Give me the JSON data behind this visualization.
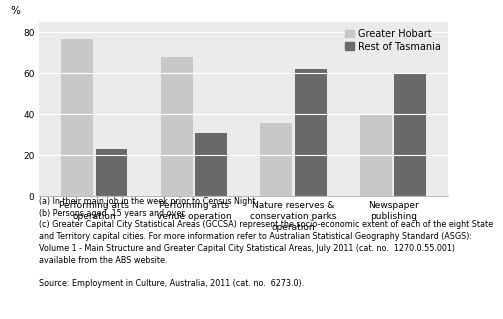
{
  "categories": [
    "Performing arts\noperation",
    "Performing arts\nvenue operation",
    "Nature reserves &\nconservation parks\noperation",
    "Newspaper\npublishing"
  ],
  "greater_hobart": [
    77,
    68,
    36,
    40
  ],
  "rest_of_tasmania": [
    23,
    31,
    62,
    60
  ],
  "bar_color_hobart": "#c8c8c8",
  "bar_color_rest": "#696969",
  "bar_width": 0.32,
  "ylim": [
    0,
    85
  ],
  "yticks": [
    0,
    20,
    40,
    60,
    80
  ],
  "ylabel": "%",
  "legend_labels": [
    "Greater Hobart",
    "Rest of Tasmania"
  ],
  "footnote_lines": [
    "(a) In their main job in the week prior to Census Night.",
    "(b) Persons aged  15 years and over.",
    "(c) Greater Capital City Statistical Areas (GCCSA) represent the socio-economic extent of each of the eight State",
    "and Territory capital cities. For more information refer to Australian Statistical Geography Standard (ASGS):",
    "Volume 1 - Main Structure and Greater Capital City Statistical Areas, July 2011 (cat. no.  1270.0.55.001)",
    "available from the ABS website.",
    "",
    "Source: Employment in Culture, Australia, 2011 (cat. no.  6273.0)."
  ],
  "grid_color": "#ffffff",
  "ax_facecolor": "#ebebeb",
  "font_size_ticks": 6.5,
  "font_size_footnote": 5.8,
  "font_size_legend": 7.0,
  "font_size_ylabel": 7.5
}
